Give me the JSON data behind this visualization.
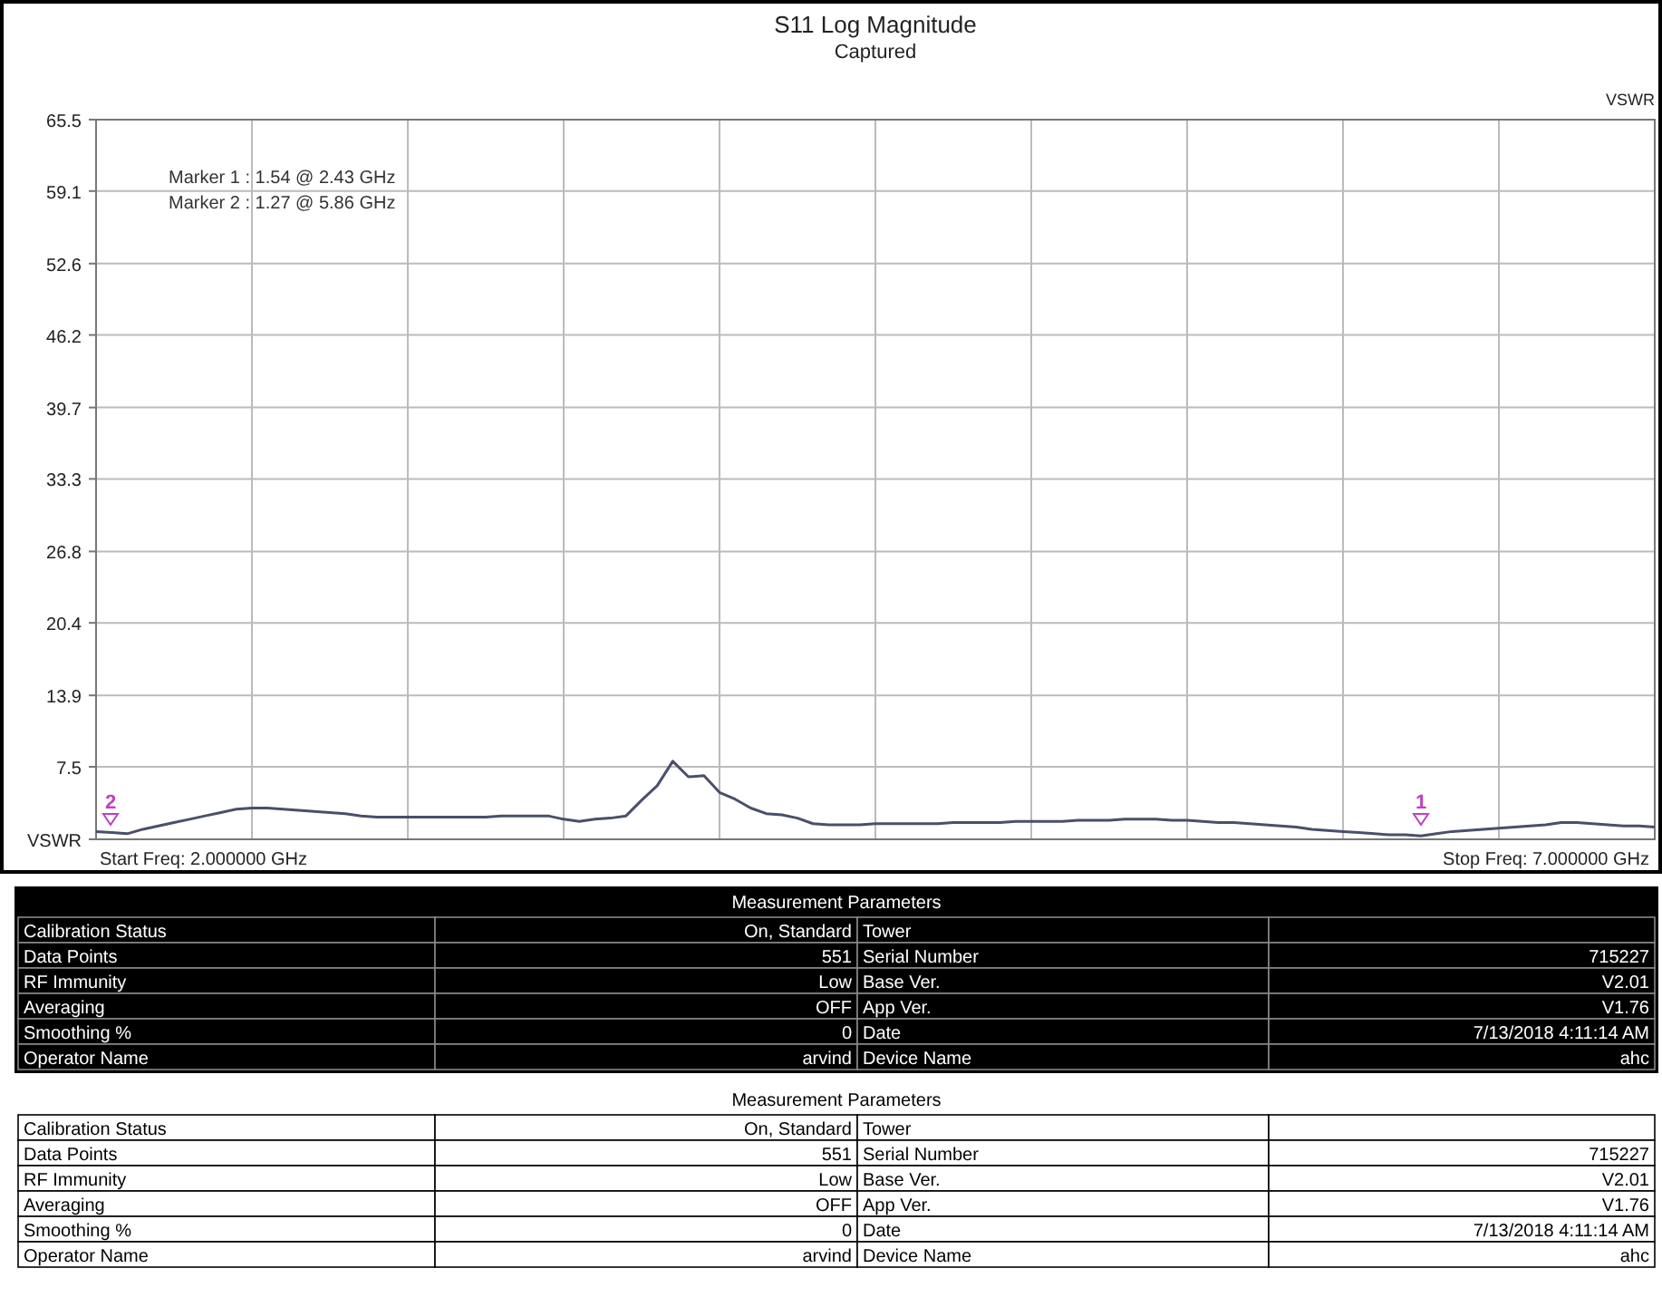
{
  "chart_data": {
    "type": "line",
    "title": "S11 Log Magnitude",
    "subtitle": "Captured",
    "ylabel": "VSWR",
    "categories": [
      null,
      null,
      null,
      null,
      null,
      null,
      null,
      null,
      null,
      null,
      null,
      null,
      null,
      null,
      null,
      null,
      null,
      null,
      null,
      null,
      null,
      null,
      null,
      null,
      null,
      null,
      null,
      null,
      null,
      null,
      null,
      null,
      null,
      null,
      null,
      null,
      null,
      null,
      null,
      null,
      null,
      null,
      null,
      null,
      null,
      null,
      null,
      null,
      null,
      null,
      null,
      null,
      null,
      null,
      null,
      null,
      null,
      null,
      null,
      null,
      null,
      null,
      null,
      null,
      null,
      null,
      null,
      null,
      null,
      null,
      null,
      null,
      null,
      null,
      null,
      null,
      null,
      null,
      null,
      null,
      null,
      null,
      null,
      null,
      null,
      null,
      null,
      null,
      null,
      null,
      null,
      null,
      null,
      null,
      null,
      null,
      null,
      null,
      null,
      null,
      null
    ],
    "ylim": [
      1,
      65.5
    ],
    "yticks": [
      {
        "value": 1,
        "label": "VSWR"
      },
      7.5,
      13.9,
      20.4,
      26.8,
      33.3,
      39.7,
      46.2,
      52.6,
      59.1,
      65.5
    ],
    "grid": true,
    "tick_labels": "y",
    "series": [
      {
        "color": "#4a4f6a",
        "values": [
          1.7,
          1.6,
          1.5,
          1.9,
          2.2,
          2.5,
          2.8,
          3.1,
          3.4,
          3.7,
          3.8,
          3.8,
          3.7,
          3.6,
          3.5,
          3.4,
          3.3,
          3.1,
          3.0,
          3.0,
          3.0,
          3.0,
          3.0,
          3.0,
          3.0,
          3.0,
          3.1,
          3.1,
          3.1,
          3.1,
          2.8,
          2.6,
          2.8,
          2.9,
          3.1,
          4.5,
          5.8,
          8.0,
          6.6,
          6.7,
          5.2,
          4.6,
          3.8,
          3.3,
          3.2,
          2.9,
          2.4,
          2.3,
          2.3,
          2.3,
          2.4,
          2.4,
          2.4,
          2.4,
          2.4,
          2.5,
          2.5,
          2.5,
          2.5,
          2.6,
          2.6,
          2.6,
          2.6,
          2.7,
          2.7,
          2.7,
          2.8,
          2.8,
          2.8,
          2.7,
          2.7,
          2.6,
          2.5,
          2.5,
          2.4,
          2.3,
          2.2,
          2.1,
          1.9,
          1.8,
          1.7,
          1.6,
          1.5,
          1.4,
          1.4,
          1.3,
          1.5,
          1.7,
          1.8,
          1.9,
          2.0,
          2.1,
          2.2,
          2.3,
          2.5,
          2.5,
          2.4,
          2.3,
          2.2,
          2.2,
          2.1
        ]
      }
    ],
    "annotations": [
      "Marker 1 : 1.54  @ 2.43 GHz",
      "Marker 2 : 1.27  @ 5.86 GHz",
      "Start Freq: 2.000000 GHz",
      "Stop Freq: 7.000000 GHz",
      "2",
      "1",
      "Measurement Parameters",
      "Calibration Status",
      "Data Points",
      "RF Immunity",
      "Averaging",
      "Smoothing %",
      "Operator Name",
      "On, Standard",
      "551",
      "Low",
      "OFF",
      "0",
      "arvind",
      "Tower",
      "Serial Number",
      "Base Ver.",
      "App Ver.",
      "Date",
      "Device Name",
      "715227",
      "V2.01",
      "V1.76",
      "7/13/2018 4:11:14 AM",
      "ahc",
      "Measurement Parameters",
      "Calibration Status",
      "Data Points",
      "RF Immunity",
      "Averaging",
      "Smoothing %",
      "Operator Name",
      "On, Standard",
      "551",
      "Low",
      "OFF",
      "0",
      "arvind",
      "Tower",
      "Serial Number",
      "Base Ver.",
      "App Ver.",
      "Date",
      "Device Name",
      "715227",
      "V2.01",
      "V1.76",
      "7/13/2018 4:11:14 AM",
      "ahc"
    ]
  }
}
